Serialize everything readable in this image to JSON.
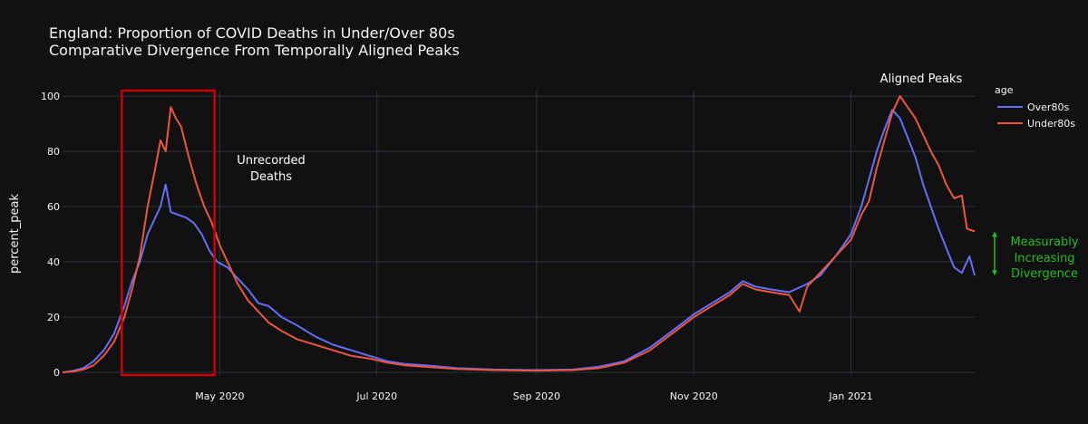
{
  "chart_data": {
    "type": "line",
    "title": "England: Proportion of COVID Deaths in Under/Over 80s",
    "subtitle": "Comparative Divergence From Temporally Aligned Peaks",
    "xlabel": "",
    "ylabel": "percent_peak",
    "xlim": [
      "2020-03-01",
      "2021-02-18"
    ],
    "ylim": [
      -1,
      102
    ],
    "x_ticks": [
      "May 2020",
      "Jul 2020",
      "Sep 2020",
      "Nov 2020",
      "Jan 2021"
    ],
    "y_ticks": [
      0,
      20,
      40,
      60,
      80,
      100
    ],
    "legend": {
      "title": "age",
      "position": "right"
    },
    "series": [
      {
        "name": "Over80s",
        "color": "#636efa",
        "points": [
          [
            "2020-03-01",
            0
          ],
          [
            "2020-03-05",
            0.5
          ],
          [
            "2020-03-09",
            1.5
          ],
          [
            "2020-03-13",
            4
          ],
          [
            "2020-03-17",
            8
          ],
          [
            "2020-03-21",
            14
          ],
          [
            "2020-03-25",
            24
          ],
          [
            "2020-03-28",
            33
          ],
          [
            "2020-03-31",
            40
          ],
          [
            "2020-04-03",
            50
          ],
          [
            "2020-04-06",
            56
          ],
          [
            "2020-04-08",
            60
          ],
          [
            "2020-04-10",
            68
          ],
          [
            "2020-04-12",
            58
          ],
          [
            "2020-04-15",
            57
          ],
          [
            "2020-04-18",
            56
          ],
          [
            "2020-04-21",
            54
          ],
          [
            "2020-04-24",
            50
          ],
          [
            "2020-04-27",
            44
          ],
          [
            "2020-04-30",
            40
          ],
          [
            "2020-05-04",
            38
          ],
          [
            "2020-05-08",
            34
          ],
          [
            "2020-05-12",
            30
          ],
          [
            "2020-05-16",
            25
          ],
          [
            "2020-05-20",
            24
          ],
          [
            "2020-05-25",
            20
          ],
          [
            "2020-05-31",
            17
          ],
          [
            "2020-06-07",
            13
          ],
          [
            "2020-06-14",
            10
          ],
          [
            "2020-06-21",
            8
          ],
          [
            "2020-06-28",
            6
          ],
          [
            "2020-07-05",
            4
          ],
          [
            "2020-07-12",
            3
          ],
          [
            "2020-07-20",
            2.5
          ],
          [
            "2020-08-01",
            1.5
          ],
          [
            "2020-08-15",
            1
          ],
          [
            "2020-09-01",
            0.8
          ],
          [
            "2020-09-15",
            1
          ],
          [
            "2020-09-25",
            2
          ],
          [
            "2020-10-05",
            4
          ],
          [
            "2020-10-15",
            9
          ],
          [
            "2020-10-25",
            16
          ],
          [
            "2020-11-01",
            21
          ],
          [
            "2020-11-08",
            25
          ],
          [
            "2020-11-15",
            29
          ],
          [
            "2020-11-20",
            33
          ],
          [
            "2020-11-25",
            31
          ],
          [
            "2020-12-01",
            30
          ],
          [
            "2020-12-08",
            29
          ],
          [
            "2020-12-15",
            32
          ],
          [
            "2020-12-20",
            35
          ],
          [
            "2020-12-26",
            42
          ],
          [
            "2021-01-01",
            50
          ],
          [
            "2021-01-05",
            60
          ],
          [
            "2021-01-08",
            70
          ],
          [
            "2021-01-11",
            80
          ],
          [
            "2021-01-14",
            88
          ],
          [
            "2021-01-17",
            95
          ],
          [
            "2021-01-20",
            92
          ],
          [
            "2021-01-23",
            85
          ],
          [
            "2021-01-26",
            78
          ],
          [
            "2021-01-29",
            68
          ],
          [
            "2021-02-01",
            60
          ],
          [
            "2021-02-04",
            52
          ],
          [
            "2021-02-07",
            45
          ],
          [
            "2021-02-10",
            38
          ],
          [
            "2021-02-13",
            36
          ],
          [
            "2021-02-16",
            42
          ],
          [
            "2021-02-18",
            35
          ]
        ]
      },
      {
        "name": "Under80s",
        "color": "#ef553b",
        "points": [
          [
            "2020-03-01",
            0
          ],
          [
            "2020-03-05",
            0.3
          ],
          [
            "2020-03-09",
            1
          ],
          [
            "2020-03-13",
            2.5
          ],
          [
            "2020-03-17",
            6
          ],
          [
            "2020-03-21",
            11
          ],
          [
            "2020-03-25",
            20
          ],
          [
            "2020-03-28",
            30
          ],
          [
            "2020-03-31",
            42
          ],
          [
            "2020-04-03",
            60
          ],
          [
            "2020-04-06",
            74
          ],
          [
            "2020-04-08",
            84
          ],
          [
            "2020-04-10",
            80
          ],
          [
            "2020-04-12",
            96
          ],
          [
            "2020-04-14",
            92
          ],
          [
            "2020-04-16",
            89
          ],
          [
            "2020-04-19",
            78
          ],
          [
            "2020-04-22",
            68
          ],
          [
            "2020-04-25",
            60
          ],
          [
            "2020-04-28",
            54
          ],
          [
            "2020-05-01",
            46
          ],
          [
            "2020-05-04",
            40
          ],
          [
            "2020-05-08",
            32
          ],
          [
            "2020-05-12",
            26
          ],
          [
            "2020-05-16",
            22
          ],
          [
            "2020-05-20",
            18
          ],
          [
            "2020-05-25",
            15
          ],
          [
            "2020-05-31",
            12
          ],
          [
            "2020-06-07",
            10
          ],
          [
            "2020-06-14",
            8
          ],
          [
            "2020-06-21",
            6
          ],
          [
            "2020-06-28",
            5
          ],
          [
            "2020-07-05",
            3.5
          ],
          [
            "2020-07-12",
            2.5
          ],
          [
            "2020-07-20",
            2
          ],
          [
            "2020-08-01",
            1.2
          ],
          [
            "2020-08-15",
            0.8
          ],
          [
            "2020-09-01",
            0.6
          ],
          [
            "2020-09-15",
            0.8
          ],
          [
            "2020-09-25",
            1.5
          ],
          [
            "2020-10-05",
            3.5
          ],
          [
            "2020-10-15",
            8
          ],
          [
            "2020-10-25",
            15
          ],
          [
            "2020-11-01",
            20
          ],
          [
            "2020-11-08",
            24
          ],
          [
            "2020-11-15",
            28
          ],
          [
            "2020-11-20",
            32
          ],
          [
            "2020-11-25",
            30
          ],
          [
            "2020-12-01",
            29
          ],
          [
            "2020-12-08",
            28
          ],
          [
            "2020-12-12",
            22
          ],
          [
            "2020-12-15",
            31
          ],
          [
            "2020-12-20",
            36
          ],
          [
            "2020-12-26",
            42
          ],
          [
            "2021-01-01",
            48
          ],
          [
            "2021-01-05",
            57
          ],
          [
            "2021-01-08",
            62
          ],
          [
            "2021-01-11",
            74
          ],
          [
            "2021-01-14",
            84
          ],
          [
            "2021-01-17",
            94
          ],
          [
            "2021-01-20",
            100
          ],
          [
            "2021-01-23",
            96
          ],
          [
            "2021-01-26",
            92
          ],
          [
            "2021-01-29",
            86
          ],
          [
            "2021-02-01",
            80
          ],
          [
            "2021-02-04",
            75
          ],
          [
            "2021-02-07",
            68
          ],
          [
            "2021-02-10",
            63
          ],
          [
            "2021-02-13",
            64
          ],
          [
            "2021-02-15",
            52
          ],
          [
            "2021-02-18",
            51
          ]
        ]
      }
    ],
    "annotations": {
      "unrecorded": [
        "Unrecorded",
        "Deaths"
      ],
      "aligned_peaks": "Aligned Peaks",
      "divergence": [
        "Measurably",
        "Increasing",
        "Divergence"
      ],
      "highlight_range": {
        "x": [
          "2020-03-24",
          "2020-04-29"
        ],
        "y": [
          -1,
          102
        ]
      }
    },
    "colors": {
      "background": "#111111",
      "grid": "#283442",
      "highlight_box": "#cc0000",
      "divergence_arrow": "#22bb22"
    }
  }
}
